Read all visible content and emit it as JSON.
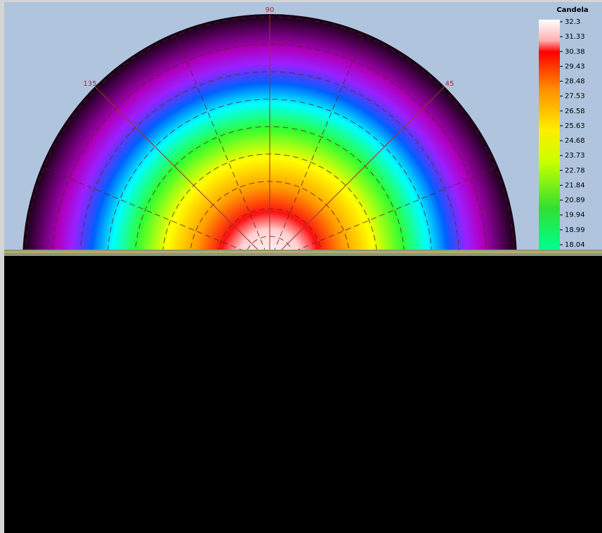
{
  "plot": {
    "angle_labels": [
      90,
      135,
      45
    ]
  },
  "colorbar": {
    "title": "Candela",
    "ticks": [
      32.3,
      31.33,
      30.38,
      29.43,
      28.48,
      27.53,
      26.58,
      25.63,
      24.68,
      23.73,
      22.78,
      21.84,
      20.89,
      19.94,
      18.99,
      18.04
    ]
  }
}
